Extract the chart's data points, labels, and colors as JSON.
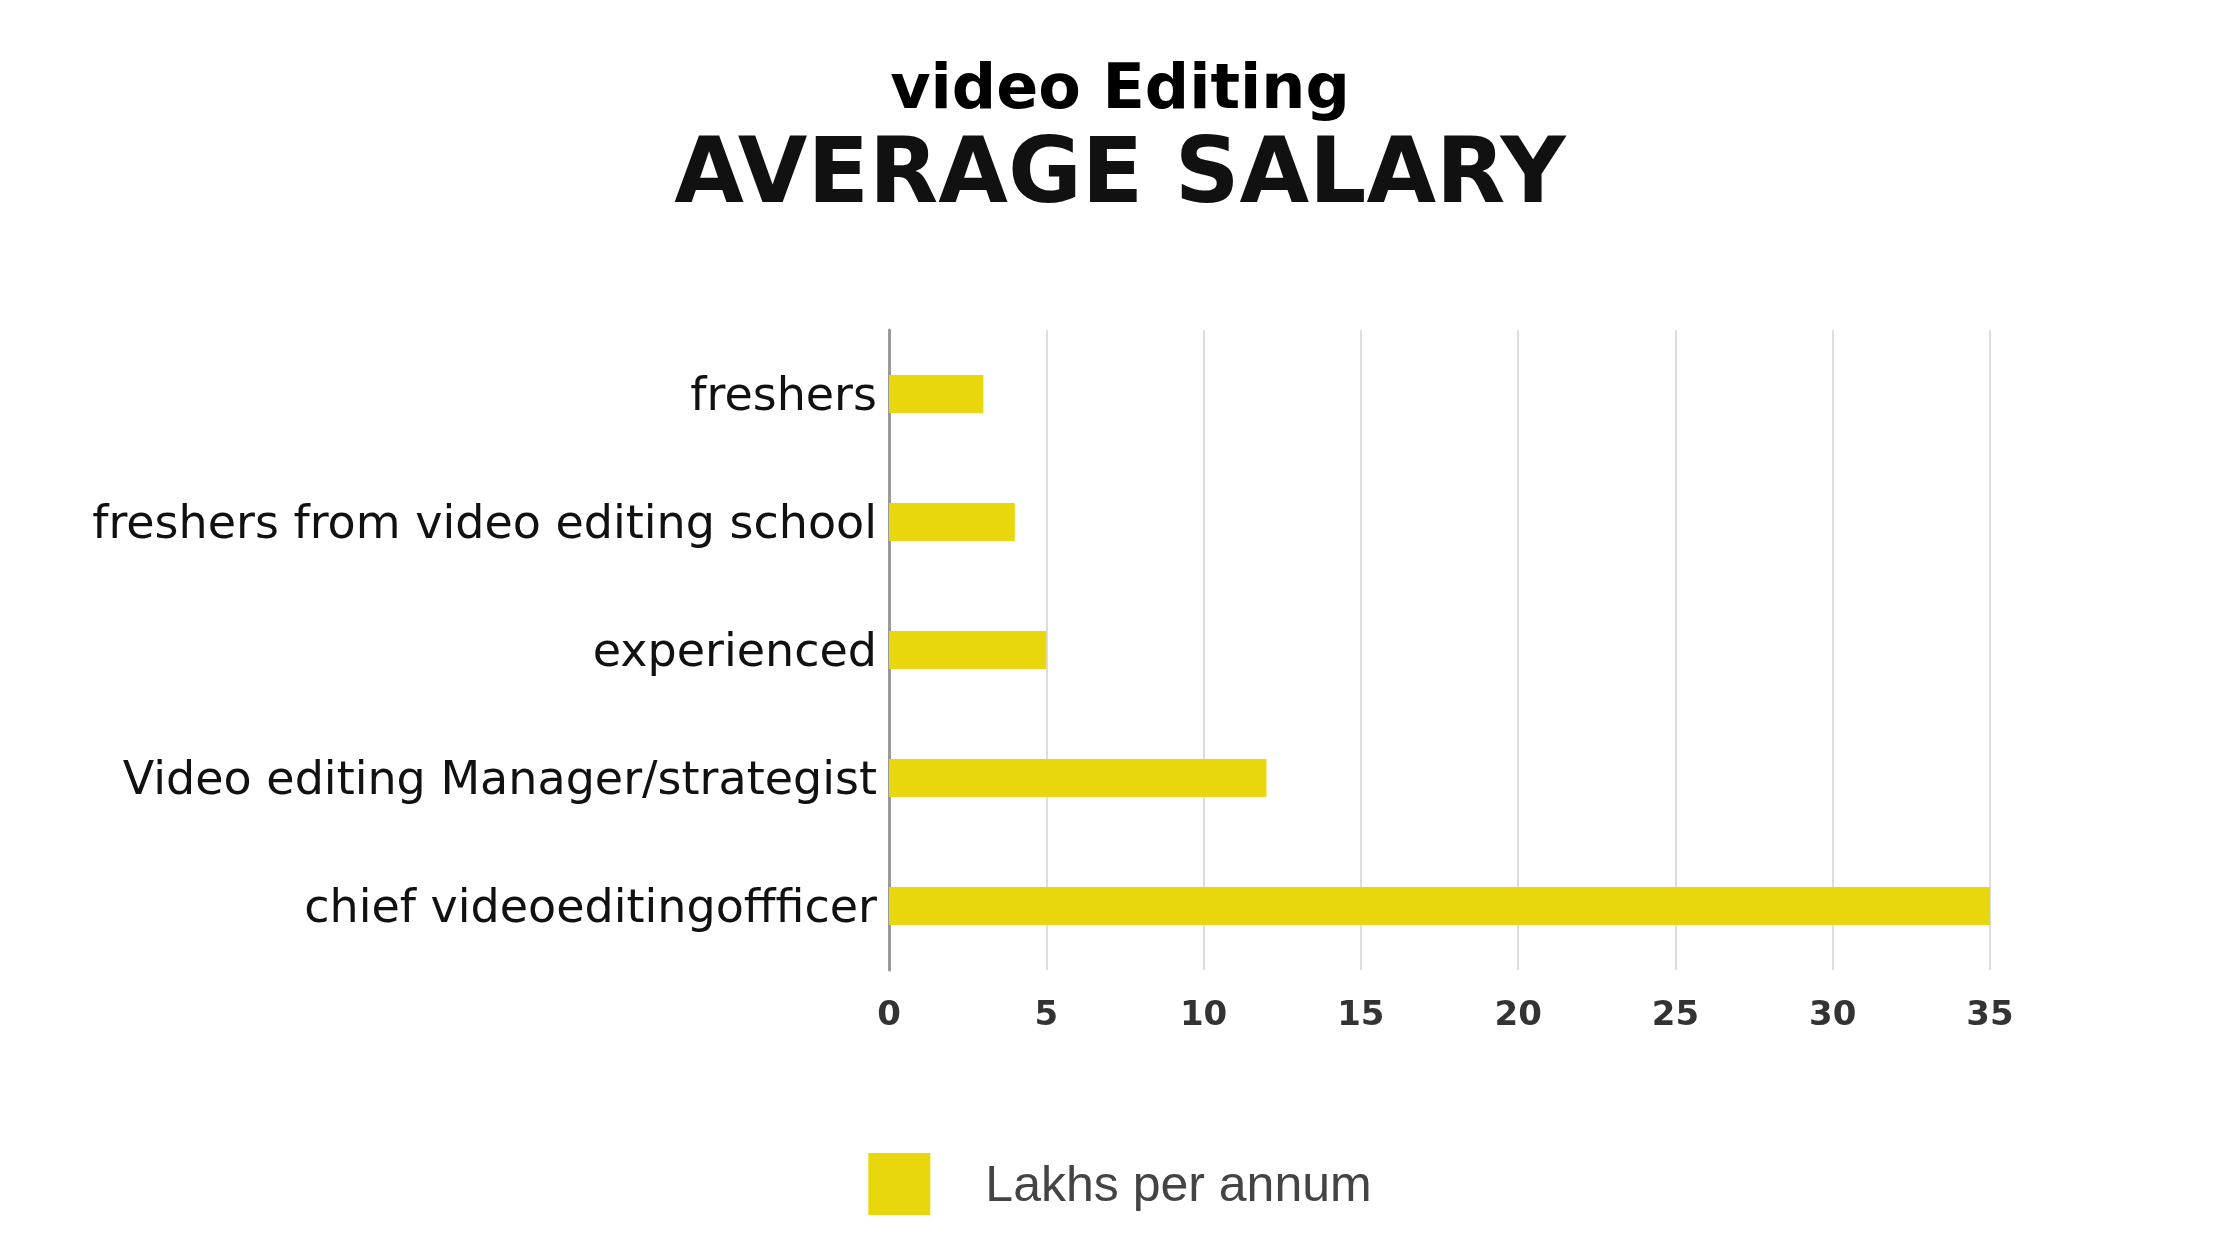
{
  "chart_data": {
    "type": "bar",
    "orientation": "horizontal",
    "title": "video Editing",
    "subtitle": "AVERAGE SALARY",
    "categories": [
      "freshers",
      "freshers from video editing school",
      "experienced",
      "Video editing Manager/strategist",
      "chief videoeditingoffficer"
    ],
    "series": [
      {
        "name": "Lakhs per annum",
        "color": "#e8d70c",
        "values": [
          3,
          4,
          5,
          12,
          35
        ]
      }
    ],
    "xlim": [
      0,
      35
    ],
    "xticks": [
      0,
      5,
      10,
      15,
      20,
      25,
      30,
      35
    ],
    "grid": "x",
    "legend": "bottom"
  }
}
